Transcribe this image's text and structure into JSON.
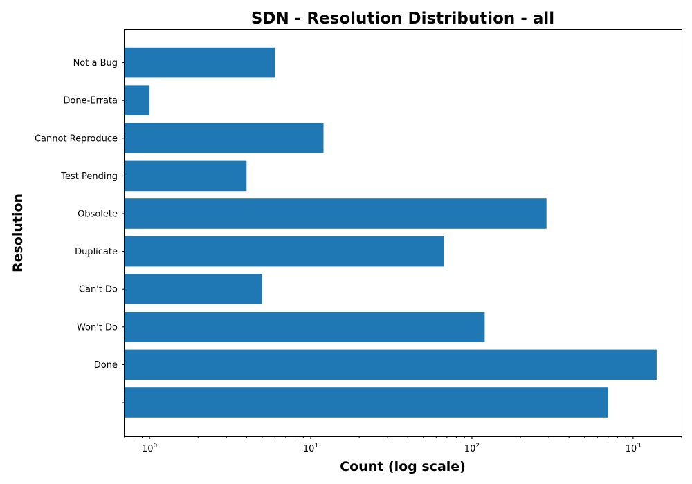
{
  "chart_data": {
    "type": "bar",
    "orientation": "horizontal",
    "title": "SDN - Resolution Distribution - all",
    "xlabel": "Count (log scale)",
    "ylabel": "Resolution",
    "x_scale": "log",
    "xlim": [
      0.7,
      2000
    ],
    "grid": false,
    "color": "#1f77b4",
    "categories": [
      "",
      "Done",
      "Won't Do",
      "Can't Do",
      "Duplicate",
      "Obsolete",
      "Test Pending",
      "Cannot Reproduce",
      "Done-Errata",
      "Not a Bug"
    ],
    "values": [
      700,
      1400,
      120,
      5,
      67,
      290,
      4,
      12,
      1,
      6
    ],
    "x_ticks": [
      {
        "value": 1,
        "base": "10",
        "exp": "0"
      },
      {
        "value": 10,
        "base": "10",
        "exp": "1"
      },
      {
        "value": 100,
        "base": "10",
        "exp": "2"
      },
      {
        "value": 1000,
        "base": "10",
        "exp": "3"
      }
    ]
  }
}
